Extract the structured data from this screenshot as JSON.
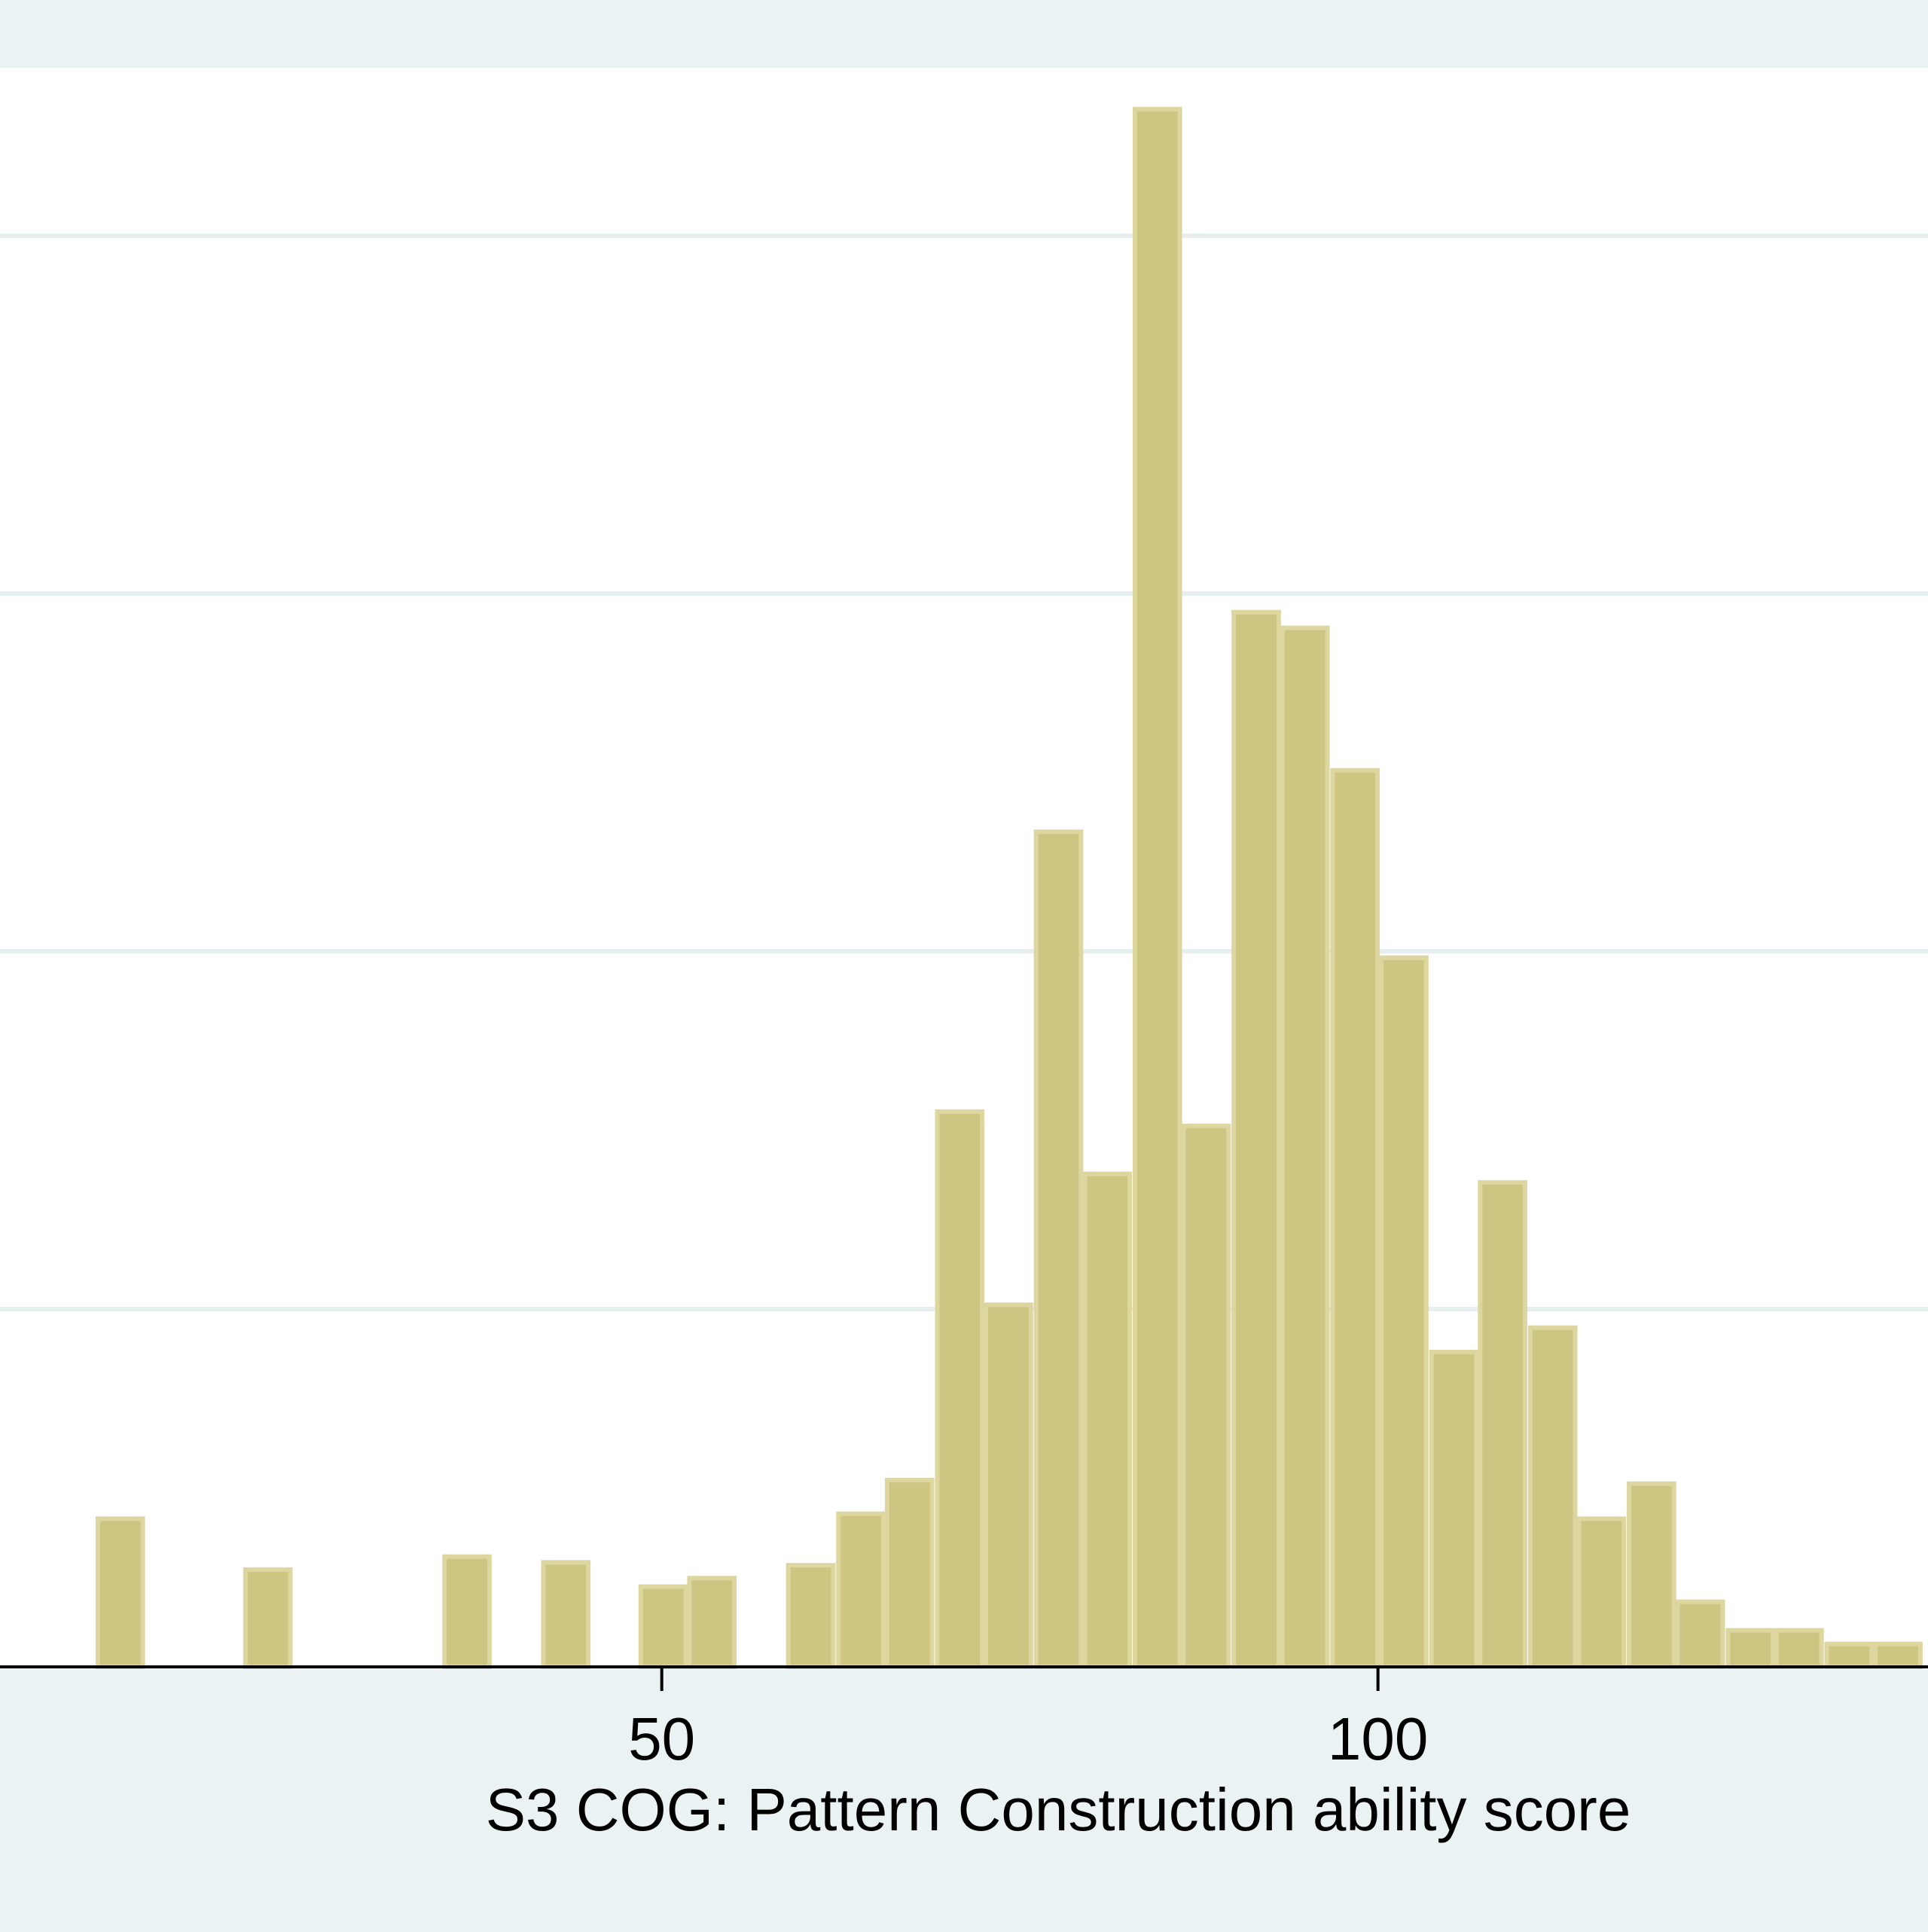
{
  "chart_data": {
    "type": "bar",
    "title": "",
    "xlabel": "S3 COG: Pattern Construction ability score",
    "ylabel": "",
    "x_ticks": [
      50,
      100
    ],
    "xlim": [
      3.8,
      138.4
    ],
    "ylim": [
      0,
      2.0
    ],
    "y_gridlines": [
      0.5,
      1.0,
      1.5,
      2.0
    ],
    "grid": "horizontal",
    "bin_width": 3.4,
    "bins": [
      {
        "x0": 10.5,
        "value": 0.207
      },
      {
        "x0": 20.8,
        "value": 0.136
      },
      {
        "x0": 34.7,
        "value": 0.154
      },
      {
        "x0": 41.6,
        "value": 0.146
      },
      {
        "x0": 48.4,
        "value": 0.112
      },
      {
        "x0": 51.8,
        "value": 0.124
      },
      {
        "x0": 58.7,
        "value": 0.142
      },
      {
        "x0": 62.2,
        "value": 0.214
      },
      {
        "x0": 65.6,
        "value": 0.261
      },
      {
        "x0": 69.1,
        "value": 0.776
      },
      {
        "x0": 72.5,
        "value": 0.506
      },
      {
        "x0": 76.0,
        "value": 1.167
      },
      {
        "x0": 79.4,
        "value": 0.689
      },
      {
        "x0": 82.9,
        "value": 2.177
      },
      {
        "x0": 86.3,
        "value": 0.756
      },
      {
        "x0": 89.8,
        "value": 1.474
      },
      {
        "x0": 93.2,
        "value": 1.452
      },
      {
        "x0": 96.7,
        "value": 1.253
      },
      {
        "x0": 100.1,
        "value": 0.991
      },
      {
        "x0": 103.6,
        "value": 0.44
      },
      {
        "x0": 107.0,
        "value": 0.677
      },
      {
        "x0": 110.5,
        "value": 0.474
      },
      {
        "x0": 113.9,
        "value": 0.207
      },
      {
        "x0": 117.4,
        "value": 0.256
      },
      {
        "x0": 120.8,
        "value": 0.091
      },
      {
        "x0": 124.3,
        "value": 0.051
      },
      {
        "x0": 127.7,
        "value": 0.051
      },
      {
        "x0": 131.2,
        "value": 0.032
      },
      {
        "x0": 134.6,
        "value": 0.032
      }
    ],
    "colors": {
      "bar_fill": "#cdc582",
      "bar_edge": "#ddd69e",
      "plot_bg": "#ffffff",
      "outer_bg": "#eaf2f3",
      "grid": "#e7eff1",
      "axis": "#000000"
    }
  }
}
